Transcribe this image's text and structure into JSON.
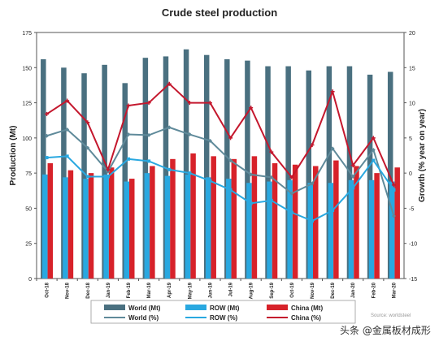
{
  "chart_data": {
    "type": "bar",
    "title": "Crude steel production",
    "ylabel": "Production (Mt)",
    "y2label": "Growth (% year on year)",
    "ylim": [
      0,
      175
    ],
    "y2lim": [
      -15,
      20
    ],
    "yticks": [
      "0",
      "25",
      "50",
      "75",
      "100",
      "125",
      "150",
      "175"
    ],
    "y2ticks": [
      "-15",
      "-10",
      "-5",
      "0",
      "5",
      "10",
      "15",
      "20"
    ],
    "categories": [
      "Oct-18",
      "Nov-18",
      "Dec-18",
      "Jan-19",
      "Feb-19",
      "Mar-19",
      "Apr-19",
      "May-19",
      "Jun-19",
      "Jul-19",
      "Aug-19",
      "Sep-19",
      "Oct-19",
      "Nov-19",
      "Dec-19",
      "Jan-20",
      "Feb-20",
      "Mar-20"
    ],
    "bar_series": [
      {
        "name": "World (Mt)",
        "color": "#4a7080",
        "values": [
          156,
          150,
          146,
          152,
          139,
          157,
          158,
          163,
          159,
          156,
          155,
          151,
          151,
          148,
          151,
          151,
          145,
          147
        ]
      },
      {
        "name": "ROW (Mt)",
        "color": "#29a8e0",
        "values": [
          74,
          72,
          71,
          74,
          69,
          75,
          73,
          74,
          72,
          71,
          68,
          69,
          70,
          68,
          68,
          70,
          70,
          69
        ]
      },
      {
        "name": "China (Mt)",
        "color": "#d7222a",
        "values": [
          82,
          77,
          75,
          79,
          71,
          80,
          85,
          89,
          87,
          85,
          87,
          82,
          81,
          80,
          84,
          80,
          75,
          79
        ]
      }
    ],
    "line_series": [
      {
        "name": "World (%)",
        "color": "#5f8a9a",
        "values": [
          5.3,
          6.2,
          3.6,
          0.2,
          5.5,
          5.4,
          6.5,
          5.5,
          4.6,
          1.8,
          -0.2,
          -0.6,
          -2.9,
          -1.5,
          3.5,
          -0.5,
          3.3,
          -6.1
        ]
      },
      {
        "name": "ROW (%)",
        "color": "#29a8e0",
        "values": [
          2.2,
          2.4,
          -0.5,
          -0.5,
          2.0,
          1.7,
          0.5,
          0.0,
          -1.1,
          -2.4,
          -4.3,
          -3.9,
          -5.6,
          -6.8,
          -5.3,
          -2.1,
          1.8,
          -2.4
        ]
      },
      {
        "name": "China (%)",
        "color": "#c4172d",
        "values": [
          8.4,
          10.3,
          7.2,
          0.5,
          9.6,
          10.0,
          12.7,
          10.0,
          10.0,
          5.0,
          9.3,
          3.0,
          -0.6,
          4.0,
          11.6,
          1.1,
          5.0,
          -1.7
        ]
      }
    ],
    "legend": {
      "placement": "bottom",
      "rows": 2
    },
    "grid": false
  },
  "source_note": "Source: worldsteel",
  "watermark": "头条 @金属板材成形"
}
